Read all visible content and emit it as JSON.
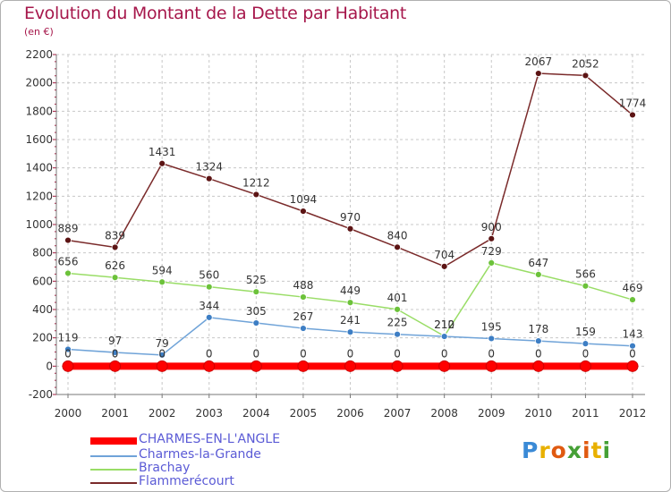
{
  "title": "Evolution du Montant de la Dette par Habitant",
  "subtitle": "(en €)",
  "logo": {
    "text": "Proxiti",
    "colors": [
      "#3a8ad6",
      "#e8b000",
      "#e05a10",
      "#45a035"
    ]
  },
  "colors": {
    "title": "#a6174b",
    "grid": "#c8c8c8",
    "axis": "#777777",
    "legend_text": "#5b5bd6"
  },
  "chart_data": {
    "type": "line",
    "x": [
      "2000",
      "2001",
      "2002",
      "2003",
      "2004",
      "2005",
      "2006",
      "2007",
      "2008",
      "2009",
      "2010",
      "2011",
      "2012"
    ],
    "ylim": [
      -200,
      2200
    ],
    "yticks": [
      "-200",
      "0",
      "200",
      "400",
      "600",
      "800",
      "1000",
      "1200",
      "1400",
      "1600",
      "1800",
      "2000",
      "2200"
    ],
    "grid": "vertical and horizontal dashed",
    "legend_position": "bottom-left",
    "series": [
      {
        "name": "CHARMES-EN-L'ANGLE",
        "color": "#ff0000",
        "marker_color": "#ff0000",
        "values": [
          0,
          0,
          0,
          0,
          0,
          0,
          0,
          0,
          0,
          0,
          0,
          0,
          0
        ],
        "labels": [
          "0",
          "0",
          "0",
          "0",
          "0",
          "0",
          "0",
          "0",
          "0",
          "0",
          "0",
          "0",
          "0"
        ]
      },
      {
        "name": "Charmes-la-Grande",
        "color": "#6fa3d8",
        "marker_color": "#3d7ec4",
        "values": [
          119,
          97,
          79,
          344,
          305,
          267,
          241,
          225,
          210,
          195,
          178,
          159,
          143
        ],
        "labels": [
          "119",
          "97",
          "79",
          "344",
          "305",
          "267",
          "241",
          "225",
          "210",
          "195",
          "178",
          "159",
          "143"
        ]
      },
      {
        "name": "Brachay",
        "color": "#99dd66",
        "marker_color": "#6cc23a",
        "values": [
          656,
          626,
          594,
          560,
          525,
          488,
          449,
          401,
          212,
          729,
          647,
          566,
          469
        ],
        "labels": [
          "656",
          "626",
          "594",
          "560",
          "525",
          "488",
          "449",
          "401",
          "212",
          "729",
          "647",
          "566",
          "469"
        ]
      },
      {
        "name": "Flammerécourt",
        "color": "#7a2a2a",
        "marker_color": "#5c1414",
        "values": [
          889,
          839,
          1431,
          1324,
          1212,
          1094,
          970,
          840,
          704,
          900,
          2067,
          2052,
          1774
        ],
        "labels": [
          "889",
          "839",
          "1431",
          "1324",
          "1212",
          "1094",
          "970",
          "840",
          "704",
          "900",
          "2067",
          "2052",
          "1774"
        ]
      }
    ]
  }
}
